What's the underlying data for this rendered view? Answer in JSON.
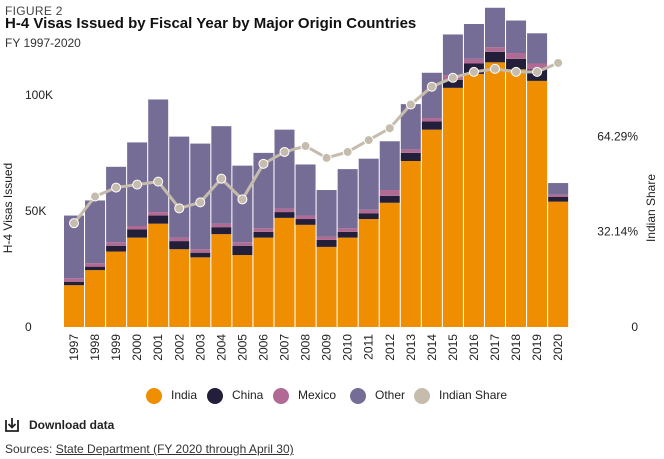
{
  "figure_label": "FIGURE 2",
  "title": "H-4 Visas Issued by Fiscal Year by Major Origin Countries",
  "subtitle": "FY 1997-2020",
  "download": {
    "label": "Download data",
    "icon": "download-icon"
  },
  "sources": {
    "prefix": "Sources:",
    "link_text": "State Department (FY 2020 through April 30)"
  },
  "colors": {
    "India": "#ee8e00",
    "China": "#231f3b",
    "Mexico": "#b06a93",
    "Other": "#756d96",
    "Indian Share": "#c5bcad"
  },
  "chart_data": {
    "type": "bar",
    "stacked": true,
    "categories": [
      "1997",
      "1998",
      "1999",
      "2000",
      "2001",
      "2002",
      "2003",
      "2004",
      "2005",
      "2006",
      "2007",
      "2008",
      "2009",
      "2010",
      "2011",
      "2012",
      "2013",
      "2014",
      "2015",
      "2016",
      "2017",
      "2018",
      "2019",
      "2020"
    ],
    "series": [
      {
        "name": "India",
        "values": [
          18000,
          24500,
          32500,
          38500,
          44500,
          33500,
          30000,
          40000,
          31000,
          38500,
          47000,
          44000,
          34500,
          38500,
          46500,
          53500,
          71500,
          85000,
          103000,
          109000,
          114000,
          111000,
          106000,
          54000
        ]
      },
      {
        "name": "China",
        "values": [
          1500,
          1500,
          2500,
          3500,
          3500,
          3500,
          2000,
          3000,
          4000,
          2500,
          2500,
          2500,
          3000,
          2500,
          2500,
          3000,
          3500,
          3500,
          3500,
          4500,
          4500,
          4500,
          5000,
          2000
        ]
      },
      {
        "name": "Mexico",
        "values": [
          1500,
          1500,
          1500,
          1500,
          1500,
          1500,
          1500,
          1500,
          1500,
          1500,
          1500,
          1500,
          1500,
          1500,
          1500,
          2500,
          1500,
          1500,
          2000,
          2000,
          2000,
          2500,
          2500,
          1000
        ]
      },
      {
        "name": "Other",
        "values": [
          27000,
          27000,
          32500,
          36000,
          48500,
          43500,
          45500,
          42000,
          33000,
          32500,
          34000,
          22000,
          20000,
          25500,
          22000,
          21000,
          19500,
          19500,
          17500,
          15000,
          17000,
          14000,
          13000,
          5000
        ]
      }
    ],
    "line_series": {
      "name": "Indian Share",
      "axis": "right",
      "values": [
        0.35,
        0.44,
        0.47,
        0.48,
        0.49,
        0.4,
        0.42,
        0.5,
        0.43,
        0.55,
        0.59,
        0.61,
        0.57,
        0.59,
        0.63,
        0.67,
        0.75,
        0.81,
        0.84,
        0.86,
        0.87,
        0.86,
        0.86,
        0.89
      ]
    },
    "ylabel": "H-4 Visas Issued",
    "ylabel_right": "Indian Share",
    "ylim": [
      0,
      115000
    ],
    "ylim_right": [
      0,
      0.9
    ],
    "yticks": [
      0,
      50000,
      100000
    ],
    "ytick_labels": [
      "0",
      "50K",
      "100K"
    ],
    "yticks_right": [
      0,
      0.3214,
      0.6429
    ],
    "ytick_labels_right": [
      "0",
      "32.14%",
      "64.29%"
    ],
    "legend": [
      "India",
      "China",
      "Mexico",
      "Other",
      "Indian Share"
    ],
    "legend_position": "bottom",
    "grid": false
  }
}
